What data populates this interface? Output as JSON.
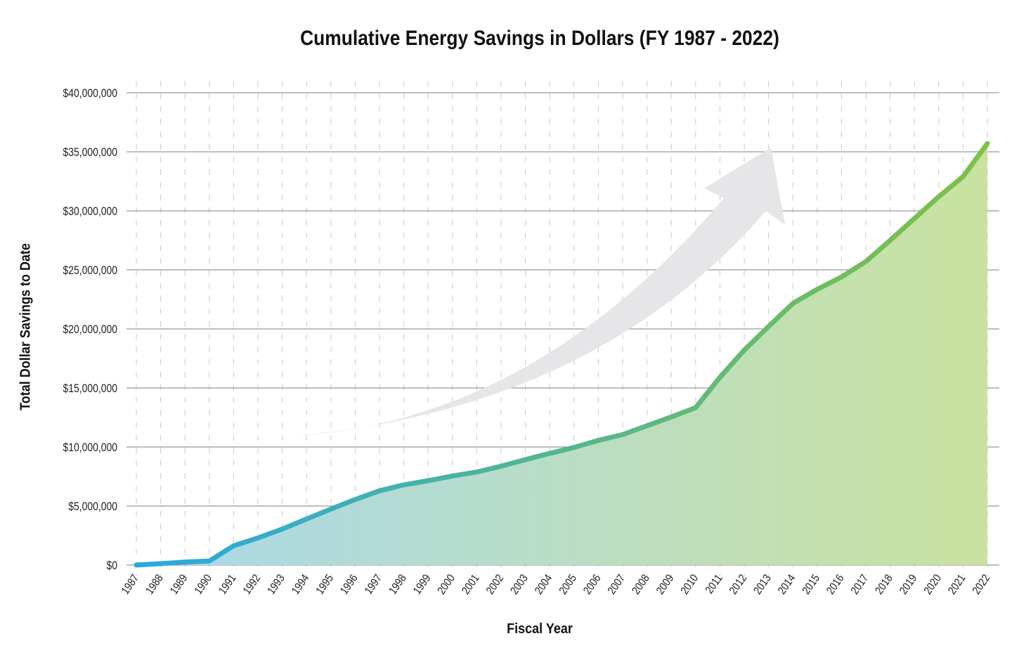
{
  "chart_data": {
    "type": "area",
    "title": "Cumulative Energy Savings in Dollars (FY 1987 - 2022)",
    "xlabel": "Fiscal Year",
    "ylabel": "Total Dollar Savings to Date",
    "ylim": [
      0,
      40000000
    ],
    "yticks": [
      0,
      5000000,
      10000000,
      15000000,
      20000000,
      25000000,
      30000000,
      35000000,
      40000000
    ],
    "ytick_labels": [
      "$0",
      "$5,000,000",
      "$10,000,000",
      "$15,000,000",
      "$20,000,000",
      "$25,000,000",
      "$30,000,000",
      "$35,000,000",
      "$40,000,000"
    ],
    "grid": {
      "horizontal": "solid",
      "vertical": "dashed"
    },
    "x": [
      1987,
      1988,
      1989,
      1990,
      1991,
      1992,
      1993,
      1994,
      1995,
      1996,
      1997,
      1998,
      1999,
      2000,
      2001,
      2002,
      2003,
      2004,
      2005,
      2006,
      2007,
      2008,
      2009,
      2010,
      2011,
      2012,
      2013,
      2014,
      2015,
      2016,
      2017,
      2018,
      2019,
      2020,
      2021,
      2022
    ],
    "x_labels": [
      "1987",
      "1988",
      "1989",
      "1990",
      "1991",
      "1992",
      "1993",
      "1994",
      "1995",
      "1996",
      "1997",
      "1998",
      "1999",
      "2000",
      "2001",
      "2002",
      "2003",
      "2004",
      "2005",
      "2006",
      "2007",
      "2008",
      "2009",
      "2010",
      "2011",
      "2012",
      "2013",
      "2014",
      "2015",
      "2016",
      "2017",
      "2018",
      "2019",
      "2020",
      "2021",
      "2022"
    ],
    "values": [
      0,
      120000,
      250000,
      340000,
      1630000,
      2300000,
      3050000,
      3900000,
      4740000,
      5550000,
      6290000,
      6790000,
      7140000,
      7540000,
      7880000,
      8370000,
      8930000,
      9460000,
      9960000,
      10560000,
      11050000,
      11800000,
      12540000,
      13330000,
      15900000,
      18200000,
      20200000,
      22160000,
      23350000,
      24400000,
      25700000,
      27500000,
      29350000,
      31200000,
      32900000,
      35700000
    ],
    "colors": {
      "line_start": "#29a9df",
      "line_end": "#7dc242",
      "fill_start": "#a9d8ea",
      "fill_end": "#c9e2a0",
      "grid": "#999999",
      "arrow": "#e6e6e8"
    },
    "decoration": "upward-trend-arrow"
  }
}
